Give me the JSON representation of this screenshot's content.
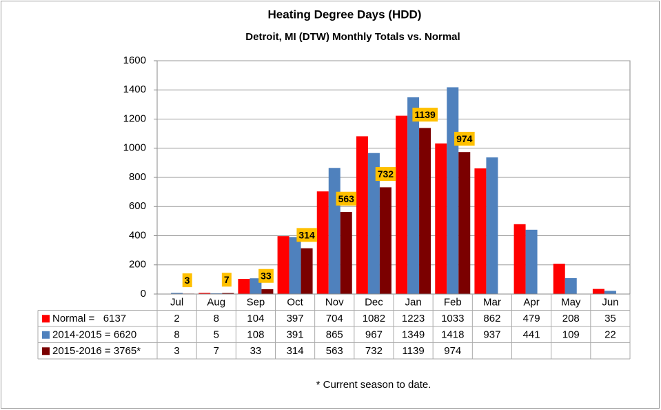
{
  "chart_data": {
    "type": "bar",
    "title": "Heating Degree Days (HDD)",
    "subtitle": "Detroit, MI (DTW)  Monthly Totals vs. Normal",
    "categories": [
      "Jul",
      "Aug",
      "Sep",
      "Oct",
      "Nov",
      "Dec",
      "Jan",
      "Feb",
      "Mar",
      "Apr",
      "May",
      "Jun"
    ],
    "series": [
      {
        "name": "Normal =   6137",
        "color": "#ff0000",
        "values": [
          2,
          8,
          104,
          397,
          704,
          1082,
          1223,
          1033,
          862,
          479,
          208,
          35
        ]
      },
      {
        "name": "2014-2015 = 6620",
        "color": "#4f81bd",
        "values": [
          8,
          5,
          108,
          391,
          865,
          967,
          1349,
          1418,
          937,
          441,
          109,
          22
        ]
      },
      {
        "name": "2015-2016 = 3765*",
        "color": "#7b0000",
        "values": [
          3,
          7,
          33,
          314,
          563,
          732,
          1139,
          974,
          null,
          null,
          null,
          null
        ]
      }
    ],
    "data_labels_series": 2,
    "ylim": [
      0,
      1600
    ],
    "yticks": [
      0,
      200,
      400,
      600,
      800,
      1000,
      1200,
      1400,
      1600
    ],
    "grid": true,
    "footnote": "* Current season to date."
  }
}
